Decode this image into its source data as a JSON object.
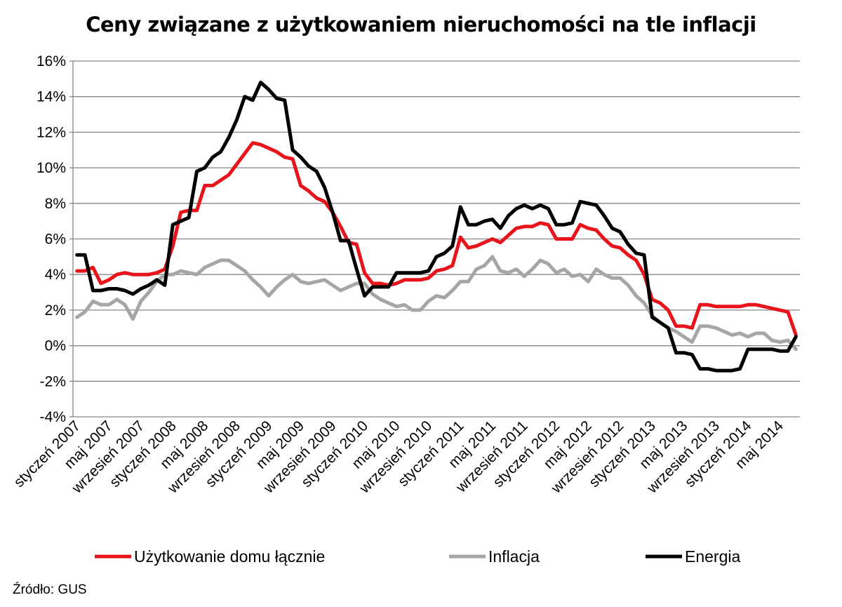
{
  "chart_data": {
    "type": "line",
    "title": "Ceny związane z użytkowaniem nieruchomości na tle inflacji",
    "ylim": [
      -4,
      16
    ],
    "yticks": [
      -4,
      -2,
      0,
      2,
      4,
      6,
      8,
      10,
      12,
      14,
      16
    ],
    "ytick_labels": [
      "-4%",
      "-2%",
      "0%",
      "2%",
      "4%",
      "6%",
      "8%",
      "10%",
      "12%",
      "14%",
      "16%"
    ],
    "grid": true,
    "legend_position": "bottom",
    "x": [
      "2007-01",
      "2007-02",
      "2007-03",
      "2007-04",
      "2007-05",
      "2007-06",
      "2007-07",
      "2007-08",
      "2007-09",
      "2007-10",
      "2007-11",
      "2007-12",
      "2008-01",
      "2008-02",
      "2008-03",
      "2008-04",
      "2008-05",
      "2008-06",
      "2008-07",
      "2008-08",
      "2008-09",
      "2008-10",
      "2008-11",
      "2008-12",
      "2009-01",
      "2009-02",
      "2009-03",
      "2009-04",
      "2009-05",
      "2009-06",
      "2009-07",
      "2009-08",
      "2009-09",
      "2009-10",
      "2009-11",
      "2009-12",
      "2010-01",
      "2010-02",
      "2010-03",
      "2010-04",
      "2010-05",
      "2010-06",
      "2010-07",
      "2010-08",
      "2010-09",
      "2010-10",
      "2010-11",
      "2010-12",
      "2011-01",
      "2011-02",
      "2011-03",
      "2011-04",
      "2011-05",
      "2011-06",
      "2011-07",
      "2011-08",
      "2011-09",
      "2011-10",
      "2011-11",
      "2011-12",
      "2012-01",
      "2012-02",
      "2012-03",
      "2012-04",
      "2012-05",
      "2012-06",
      "2012-07",
      "2012-08",
      "2012-09",
      "2012-10",
      "2012-11",
      "2012-12",
      "2013-01",
      "2013-02",
      "2013-03",
      "2013-04",
      "2013-05",
      "2013-06",
      "2013-07",
      "2013-08",
      "2013-09",
      "2013-10",
      "2013-11",
      "2013-12",
      "2014-01",
      "2014-02",
      "2014-03",
      "2014-04",
      "2014-05",
      "2014-06",
      "2014-07"
    ],
    "x_tick_labels": [
      {
        "index": 0,
        "label": "styczeń 2007"
      },
      {
        "index": 4,
        "label": "maj 2007"
      },
      {
        "index": 8,
        "label": "wrzesień 2007"
      },
      {
        "index": 12,
        "label": "styczeń 2008"
      },
      {
        "index": 16,
        "label": "maj 2008"
      },
      {
        "index": 20,
        "label": "wrzesień 2008"
      },
      {
        "index": 24,
        "label": "styczeń 2009"
      },
      {
        "index": 28,
        "label": "maj 2009"
      },
      {
        "index": 32,
        "label": "wrzesień 2009"
      },
      {
        "index": 36,
        "label": "styczeń 2010"
      },
      {
        "index": 40,
        "label": "maj 2010"
      },
      {
        "index": 44,
        "label": "wrzesień 2010"
      },
      {
        "index": 48,
        "label": "styczeń 2011"
      },
      {
        "index": 52,
        "label": "maj 2011"
      },
      {
        "index": 56,
        "label": "wrzesień 2011"
      },
      {
        "index": 60,
        "label": "styczeń 2012"
      },
      {
        "index": 64,
        "label": "maj 2012"
      },
      {
        "index": 68,
        "label": "wrzesień 2012"
      },
      {
        "index": 72,
        "label": "styczeń 2013"
      },
      {
        "index": 76,
        "label": "maj 2013"
      },
      {
        "index": 80,
        "label": "wrzesień 2013"
      },
      {
        "index": 84,
        "label": "styczeń 2014"
      },
      {
        "index": 88,
        "label": "maj 2014"
      }
    ],
    "series": [
      {
        "name": "Użytkowanie domu łącznie",
        "color": "#e8141c",
        "values": [
          4.2,
          4.2,
          4.4,
          3.5,
          3.7,
          4.0,
          4.1,
          4.0,
          4.0,
          4.0,
          4.1,
          4.3,
          5.6,
          7.5,
          7.6,
          7.6,
          9.0,
          9.0,
          9.3,
          9.6,
          10.2,
          10.8,
          11.4,
          11.3,
          11.1,
          10.9,
          10.6,
          10.5,
          9.0,
          8.7,
          8.3,
          8.1,
          7.5,
          6.7,
          5.8,
          5.7,
          4.1,
          3.5,
          3.5,
          3.4,
          3.5,
          3.7,
          3.7,
          3.7,
          3.8,
          4.2,
          4.3,
          4.5,
          6.1,
          5.5,
          5.6,
          5.8,
          6.0,
          5.8,
          6.2,
          6.6,
          6.7,
          6.7,
          6.9,
          6.8,
          6.0,
          6.0,
          6.0,
          6.8,
          6.6,
          6.5,
          6.0,
          5.6,
          5.5,
          5.1,
          4.8,
          4.0,
          2.6,
          2.4,
          2.0,
          1.1,
          1.1,
          1.0,
          2.3,
          2.3,
          2.2,
          2.2,
          2.2,
          2.2,
          2.3,
          2.3,
          2.2,
          2.1,
          2.0,
          1.9,
          0.6
        ]
      },
      {
        "name": "Inflacja",
        "color": "#a6a6a6",
        "values": [
          1.6,
          1.9,
          2.5,
          2.3,
          2.3,
          2.6,
          2.3,
          1.5,
          2.5,
          3.0,
          3.6,
          4.0,
          4.0,
          4.2,
          4.1,
          4.0,
          4.4,
          4.6,
          4.8,
          4.8,
          4.5,
          4.2,
          3.7,
          3.3,
          2.8,
          3.3,
          3.7,
          4.0,
          3.6,
          3.5,
          3.6,
          3.7,
          3.4,
          3.1,
          3.3,
          3.5,
          3.5,
          2.9,
          2.6,
          2.4,
          2.2,
          2.3,
          2.0,
          2.0,
          2.5,
          2.8,
          2.7,
          3.1,
          3.6,
          3.6,
          4.3,
          4.5,
          5.0,
          4.2,
          4.1,
          4.3,
          3.9,
          4.3,
          4.8,
          4.6,
          4.1,
          4.3,
          3.9,
          4.0,
          3.6,
          4.3,
          4.0,
          3.8,
          3.8,
          3.4,
          2.8,
          2.4,
          1.7,
          1.3,
          1.0,
          0.8,
          0.5,
          0.2,
          1.1,
          1.1,
          1.0,
          0.8,
          0.6,
          0.7,
          0.5,
          0.7,
          0.7,
          0.3,
          0.2,
          0.3,
          -0.2
        ]
      },
      {
        "name": "Energia",
        "color": "#000000",
        "values": [
          5.1,
          5.1,
          3.1,
          3.1,
          3.2,
          3.2,
          3.1,
          2.9,
          3.2,
          3.4,
          3.7,
          3.4,
          6.8,
          7.0,
          7.2,
          9.8,
          10.0,
          10.6,
          10.9,
          11.7,
          12.7,
          14.0,
          13.8,
          14.8,
          14.4,
          13.9,
          13.8,
          11.0,
          10.6,
          10.1,
          9.8,
          8.9,
          7.5,
          5.9,
          5.9,
          4.3,
          2.8,
          3.3,
          3.3,
          3.3,
          4.1,
          4.1,
          4.1,
          4.1,
          4.2,
          5.0,
          5.2,
          5.6,
          7.8,
          6.8,
          6.8,
          7.0,
          7.1,
          6.6,
          7.3,
          7.7,
          7.9,
          7.7,
          7.9,
          7.7,
          6.8,
          6.8,
          6.9,
          8.1,
          8.0,
          7.9,
          7.3,
          6.6,
          6.4,
          5.7,
          5.2,
          5.1,
          1.6,
          1.3,
          1.0,
          -0.4,
          -0.4,
          -0.5,
          -1.3,
          -1.3,
          -1.4,
          -1.4,
          -1.4,
          -1.3,
          -0.2,
          -0.2,
          -0.2,
          -0.2,
          -0.3,
          -0.3,
          0.5
        ]
      }
    ]
  },
  "source_note": "Źródło: GUS"
}
